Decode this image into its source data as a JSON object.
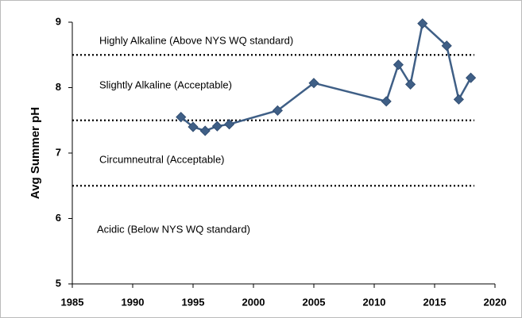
{
  "chart_data": {
    "type": "line",
    "y_label": "Avg Summer pH",
    "annotations": [
      "Highly Alkaline (Above NYS WQ standard)",
      "Slightly  Alkaline (Acceptable)",
      "Circumneutral  (Acceptable)",
      "Acidic (Below NYS WQ standard)"
    ],
    "reference_lines": [
      8.5,
      7.5,
      6.5
    ],
    "x": [
      1994,
      1995,
      1996,
      1997,
      1998,
      2002,
      2005,
      2011,
      2012,
      2013,
      2014,
      2016,
      2017,
      2018
    ],
    "series": [
      {
        "name": "Avg Summer pH",
        "color": "#3f5f86",
        "values": [
          7.55,
          7.4,
          7.34,
          7.41,
          7.44,
          7.65,
          8.07,
          7.79,
          8.35,
          8.05,
          8.98,
          8.64,
          7.82,
          8.15
        ]
      }
    ],
    "xlim": [
      1985,
      2020
    ],
    "xticks": [
      1985,
      1990,
      1995,
      2000,
      2005,
      2010,
      2015,
      2020
    ],
    "ylim": [
      5,
      9
    ],
    "yticks": [
      5,
      6,
      7,
      8,
      9
    ],
    "grid": false
  }
}
